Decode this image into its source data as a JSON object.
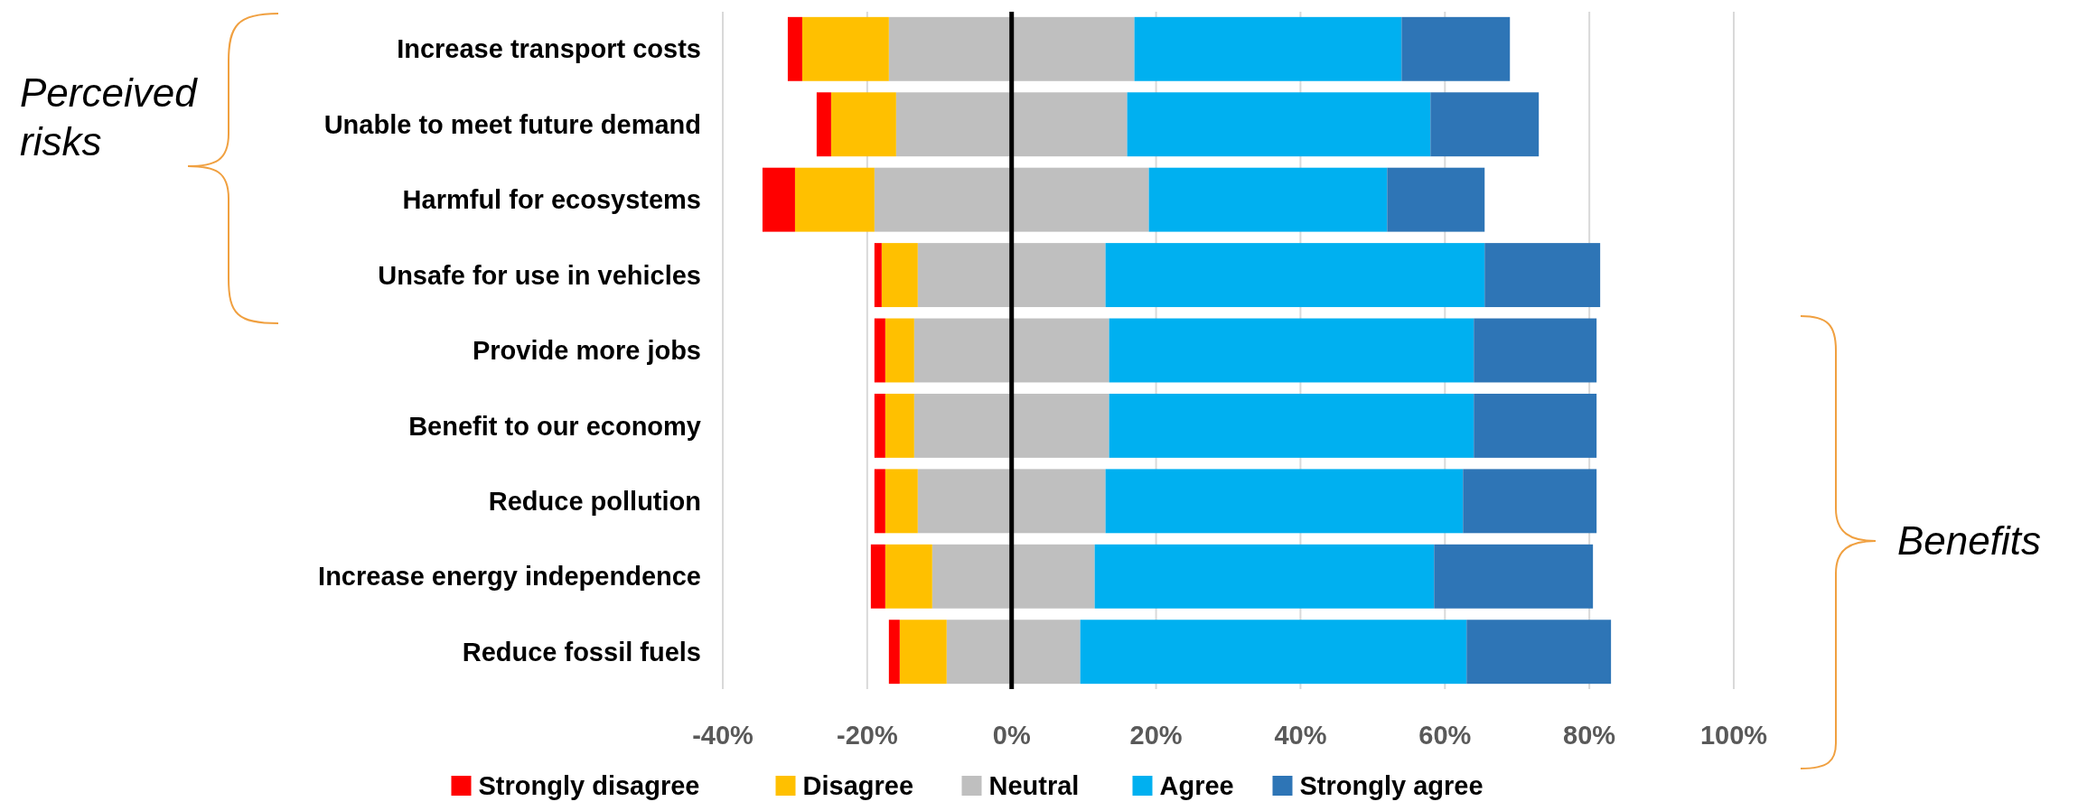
{
  "chart_data": {
    "type": "bar",
    "orientation": "horizontal",
    "stacked": true,
    "categories": [
      "Increase transport costs",
      "Unable to meet future demand",
      "Harmful for ecosystems",
      "Unsafe for use in vehicles",
      "Provide more jobs",
      "Benefit to our economy",
      "Reduce pollution",
      "Increase energy independence",
      "Reduce fossil fuels"
    ],
    "series": [
      {
        "name": "Neutral",
        "color": "#bfbfbf",
        "values": [
          -17,
          -16,
          -19,
          -13,
          -13.5,
          -13.5,
          -13,
          -11,
          -9
        ]
      },
      {
        "name": "Disagree",
        "color": "#ffc000",
        "values": [
          -12,
          -9,
          -11,
          -5,
          -4,
          -4,
          -4.5,
          -6.5,
          -6.5
        ]
      },
      {
        "name": "Strongly disagree",
        "color": "#ff0000",
        "values": [
          -2,
          -2,
          -4.5,
          -1,
          -1.5,
          -1.5,
          -1.5,
          -2,
          -1.5
        ]
      },
      {
        "color": "#bfbfbf",
        "values": [
          17,
          16,
          19,
          13,
          13.5,
          13.5,
          13,
          11.5,
          9.5
        ]
      },
      {
        "name": "Agree",
        "color": "#00b0f0",
        "values": [
          37,
          42,
          33,
          52.5,
          50.5,
          50.5,
          49.5,
          47,
          53.5
        ]
      },
      {
        "name": "Strongly agree",
        "color": "#2e75b6",
        "values": [
          15,
          15,
          13.5,
          16,
          17,
          17,
          18.5,
          22,
          20
        ]
      }
    ],
    "xlim": [
      -40,
      100
    ],
    "xticks": [
      {
        "value": -40,
        "label": "-40%"
      },
      {
        "value": -20,
        "label": "-20%"
      },
      {
        "value": 0,
        "label": "0%"
      },
      {
        "value": 20,
        "label": "20%"
      },
      {
        "value": 40,
        "label": "40%"
      },
      {
        "value": 60,
        "label": "60%"
      },
      {
        "value": 80,
        "label": "80%"
      },
      {
        "value": 100,
        "label": "100%"
      }
    ],
    "grid": "x",
    "legend": "bottom",
    "annotations": [
      "Perceived risks",
      "Benefits"
    ]
  }
}
